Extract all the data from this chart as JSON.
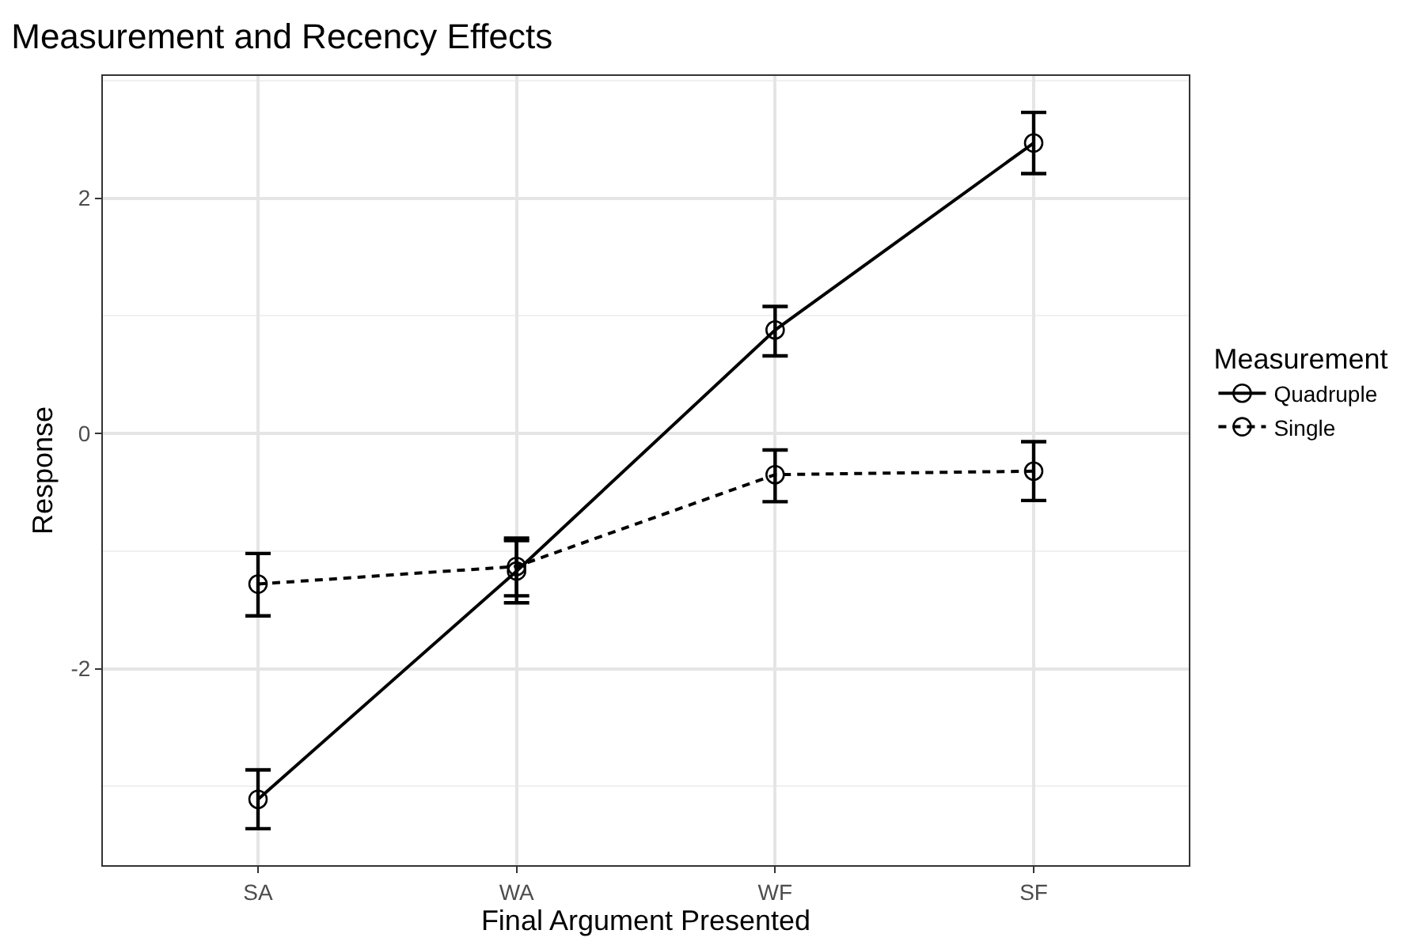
{
  "chart_data": {
    "type": "line",
    "title": "Measurement and Recency Effects",
    "xlabel": "Final Argument Presented",
    "ylabel": "Response",
    "legend_title": "Measurement",
    "categories": [
      "SA",
      "WA",
      "WF",
      "SF"
    ],
    "series": [
      {
        "name": "Quadruple",
        "color": "#000000",
        "line_style": "solid",
        "values": [
          -3.11,
          -1.17,
          0.88,
          2.47
        ],
        "errors": [
          [
            -3.36,
            -2.86
          ],
          [
            -1.44,
            -0.91
          ],
          [
            0.66,
            1.08
          ],
          [
            2.21,
            2.73
          ]
        ]
      },
      {
        "name": "Single",
        "color": "#000000",
        "line_style": "dashed",
        "values": [
          -1.28,
          -1.13,
          -0.35,
          -0.32
        ],
        "errors": [
          [
            -1.55,
            -1.02
          ],
          [
            -1.38,
            -0.89
          ],
          [
            -0.58,
            -0.14
          ],
          [
            -0.57,
            -0.07
          ]
        ]
      }
    ],
    "ylim": [
      -3.67,
      3.04
    ],
    "yticks": [
      -2,
      0,
      2
    ],
    "grid": true,
    "legend": "right",
    "marker": "circle"
  }
}
